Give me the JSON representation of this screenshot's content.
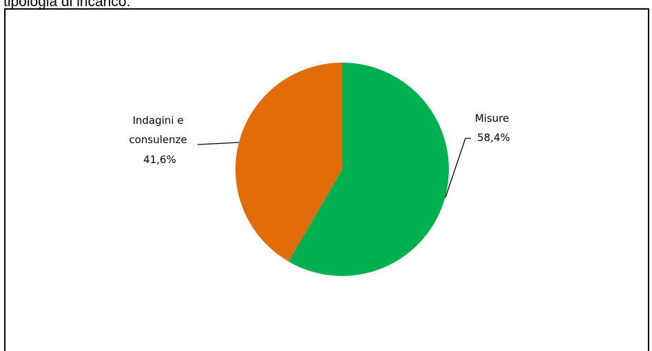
{
  "page": {
    "top_text": "tipologia di incarico."
  },
  "chart_data": {
    "type": "pie",
    "title": "",
    "slices": [
      {
        "name": "Misure",
        "value": 58.4,
        "value_label": "58,4%",
        "color": "#00b050",
        "label_lines": [
          "Misure",
          "58,4%"
        ]
      },
      {
        "name": "Indagini e consulenze",
        "value": 41.6,
        "value_label": "41,6%",
        "color": "#e36c0a",
        "label_lines": [
          "Indagini e",
          "consulenze",
          "41,6%"
        ]
      }
    ],
    "start_angle": "12 o'clock",
    "direction": "clockwise",
    "legend": "none",
    "data_labels": "outside with leader lines"
  }
}
